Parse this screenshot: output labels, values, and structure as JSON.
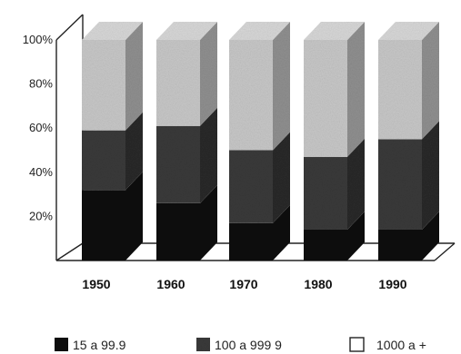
{
  "chart_data": {
    "type": "bar",
    "stacked": true,
    "percent": true,
    "three_d": true,
    "categories": [
      "1950",
      "1960",
      "1970",
      "1980",
      "1990"
    ],
    "series": [
      {
        "name": "15 a  99.9",
        "values": [
          32,
          26,
          17,
          14,
          14
        ],
        "color": "#0d0d0d"
      },
      {
        "name": "100 a 999 9",
        "values": [
          27,
          35,
          33,
          33,
          41
        ],
        "color": "#3a3a3a"
      },
      {
        "name": "1000 a +",
        "values": [
          41,
          39,
          50,
          53,
          45
        ],
        "color": "#c8c8c8"
      }
    ],
    "y_ticks": [
      "20%",
      "40%",
      "60%",
      "80%",
      "100%"
    ],
    "ylim": [
      0,
      100
    ],
    "grid": false,
    "legend_position": "bottom"
  }
}
